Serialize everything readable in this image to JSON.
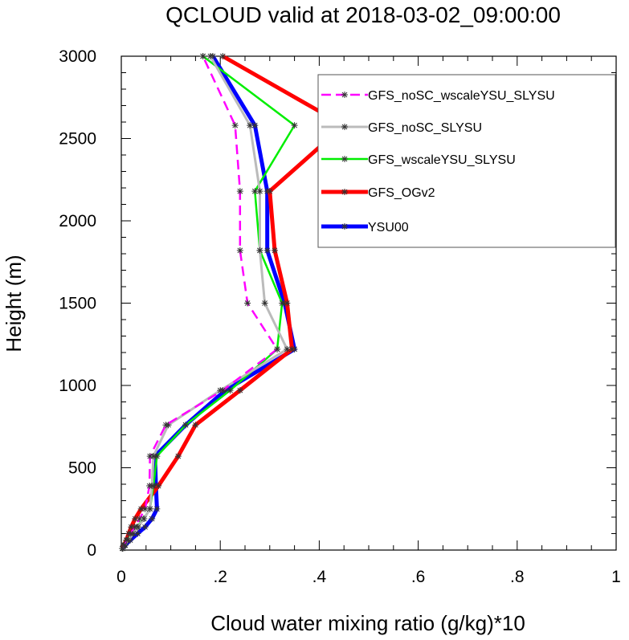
{
  "chart_data": {
    "type": "line",
    "title": "QCLOUD valid at 2018-03-02_09:00:00",
    "xlabel": "Cloud water mixing ratio (g/kg)*10",
    "ylabel": "Height (m)",
    "xlim": [
      0,
      1
    ],
    "ylim": [
      0,
      3000
    ],
    "x_ticks": [
      0,
      0.2,
      0.4,
      0.6,
      0.8,
      1
    ],
    "x_tick_labels": [
      "0",
      ".2",
      ".4",
      ".6",
      ".8",
      "1"
    ],
    "y_ticks": [
      0,
      500,
      1000,
      1500,
      2000,
      2500,
      3000
    ],
    "y_tick_labels": [
      "0",
      "500",
      "1000",
      "1500",
      "2000",
      "2500",
      "3000"
    ],
    "grid": false,
    "legend_position": "top-right",
    "heights": [
      10,
      30,
      60,
      100,
      140,
      190,
      250,
      390,
      570,
      760,
      970,
      1220,
      1500,
      1820,
      2180,
      2580,
      3000
    ],
    "series": [
      {
        "name": "YSU00",
        "color": "#0000ff",
        "width": 5,
        "dash": "solid",
        "values": [
          0.003,
          0.008,
          0.018,
          0.033,
          0.048,
          0.062,
          0.072,
          0.07,
          0.068,
          0.13,
          0.21,
          0.35,
          0.33,
          0.295,
          0.295,
          0.27,
          0.185
        ]
      },
      {
        "name": "GFS_OGv2",
        "color": "#ff0000",
        "width": 5,
        "dash": "solid",
        "values": [
          0.002,
          0.005,
          0.01,
          0.015,
          0.02,
          0.028,
          0.04,
          0.075,
          0.115,
          0.15,
          0.24,
          0.345,
          0.335,
          0.31,
          0.3,
          0.45,
          0.205
        ]
      },
      {
        "name": "GFS_wscaleYSU_SLYSU",
        "color": "#00ee00",
        "width": 2.5,
        "dash": "solid",
        "values": [
          0.003,
          0.007,
          0.013,
          0.022,
          0.032,
          0.045,
          0.058,
          0.065,
          0.072,
          0.13,
          0.22,
          0.315,
          0.325,
          0.28,
          0.27,
          0.35,
          0.165
        ]
      },
      {
        "name": "GFS_noSC_SLYSU",
        "color": "#bbbbbb",
        "width": 3,
        "dash": "solid",
        "values": [
          0.003,
          0.007,
          0.014,
          0.024,
          0.034,
          0.046,
          0.058,
          0.062,
          0.065,
          0.095,
          0.2,
          0.335,
          0.29,
          0.28,
          0.28,
          0.26,
          0.18
        ]
      },
      {
        "name": "GFS_noSC_wscaleYSU_SLYSU",
        "color": "#ff00ff",
        "width": 2.5,
        "dash": "dashed",
        "values": [
          0.002,
          0.006,
          0.011,
          0.019,
          0.027,
          0.037,
          0.048,
          0.057,
          0.058,
          0.09,
          0.205,
          0.315,
          0.255,
          0.24,
          0.24,
          0.23,
          0.165
        ]
      }
    ],
    "legend_order": [
      "GFS_noSC_wscaleYSU_SLYSU",
      "GFS_noSC_SLYSU",
      "GFS_wscaleYSU_SLYSU",
      "GFS_OGv2",
      "YSU00"
    ]
  }
}
